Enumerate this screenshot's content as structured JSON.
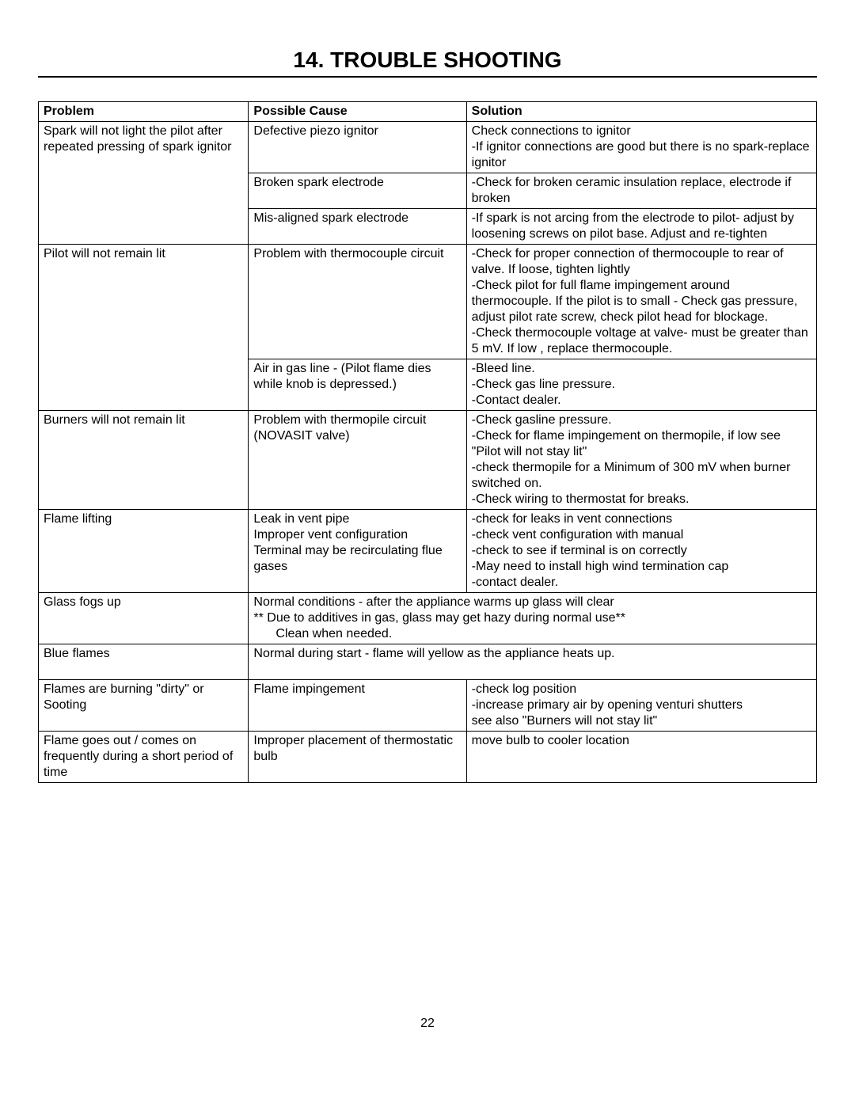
{
  "page": {
    "title": "14. TROUBLE SHOOTING",
    "page_number": "22",
    "headers": {
      "problem": "Problem",
      "cause": "Possible Cause",
      "solution": "Solution"
    },
    "rows": [
      {
        "problem": "Spark will not light the pilot after repeated pressing of spark ignitor",
        "cause": "Defective piezo ignitor",
        "solution": "Check connections to ignitor\n-If ignitor connections are good but there is no spark-replace ignitor",
        "rowspan_problem": 3
      },
      {
        "cause": "Broken spark electrode",
        "solution": "-Check for broken ceramic insulation replace, electrode if broken"
      },
      {
        "cause": "Mis-aligned spark electrode",
        "solution": "-If spark is not arcing from the electrode to pilot- adjust by loosening screws on pilot base.  Adjust and re-tighten"
      },
      {
        "problem": "Pilot will not remain lit",
        "cause": "Problem with thermocouple circuit",
        "solution": "-Check for proper connection of thermocouple to rear of valve.  If loose, tighten lightly\n-Check pilot for full flame impingement around thermocouple.  If the pilot is to small - Check gas pressure, adjust pilot rate screw, check pilot head for blockage.\n-Check thermocouple voltage at valve- must be greater than 5 mV.  If low , replace thermocouple.",
        "rowspan_problem": 2
      },
      {
        "cause": "Air in gas line - (Pilot flame dies while knob is depressed.)",
        "solution": "-Bleed line.\n-Check gas line pressure.\n-Contact dealer."
      },
      {
        "problem": "Burners will not remain lit",
        "cause": "Problem with thermopile circuit (NOVASIT valve)",
        "solution": "-Check gasline pressure.\n-Check for flame impingement on thermopile, if low see \"Pilot will not stay lit\"\n-check thermopile for a Minimum of 300 mV when burner switched on.\n-Check wiring to thermostat for breaks."
      },
      {
        "problem": "Flame lifting",
        "cause": "Leak in vent pipe\nImproper vent configuration\nTerminal may be recirculating flue gases",
        "solution": "-check for leaks in vent connections\n-check vent configuration with manual\n-check to see if terminal is on correctly\n-May need to install high wind termination cap\n-contact dealer."
      },
      {
        "problem": "Glass fogs up",
        "merged": "Normal conditions - after the appliance warms up glass will clear",
        "merged_line2": "** Due to additives in gas, glass may get hazy during normal use**",
        "merged_line3": "Clean when needed.",
        "colspan": 2
      },
      {
        "problem": "Blue flames",
        "merged": "Normal during start - flame will yellow as the appliance heats up.",
        "colspan": 2,
        "extra_pad": true
      },
      {
        "problem": "Flames are burning \"dirty\" or Sooting",
        "cause": "Flame impingement",
        "solution": "-check log position\n-increase primary air by opening venturi shutters\nsee also \"Burners will not stay lit\""
      },
      {
        "problem": "Flame goes out / comes on frequently during a short period of time",
        "cause": "Improper placement of thermostatic bulb",
        "solution": "move bulb to cooler location",
        "last": true
      }
    ]
  }
}
